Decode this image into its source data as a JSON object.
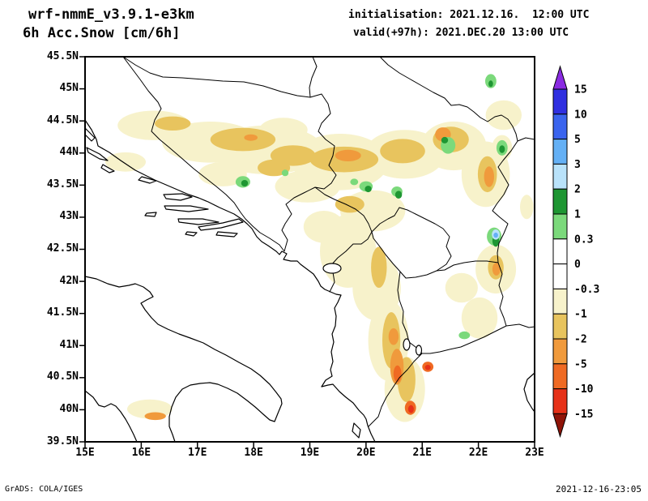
{
  "header": {
    "model_line": "wrf-nmmE_v3.9.1-e3km",
    "field_line": "6h Acc.Snow [cm/6h]",
    "init_line": "initialisation: 2021.12.16.  12:00 UTC",
    "valid_line": "valid(+97h): 2021.DEC.20 13:00 UTC"
  },
  "footer": {
    "grads_credit": "GrADS: COLA/IGES",
    "timestamp": "2021-12-16-23:05"
  },
  "chart_data": {
    "type": "heatmap",
    "title": "6h Acc.Snow [cm/6h]",
    "subtitle": "wrf-nmmE_v3.9.1-e3km",
    "grid": false,
    "legend_position": "right-colorbar",
    "x_axis": {
      "ticks_left_to_right": [
        "15E",
        "16E",
        "17E",
        "18E",
        "19E",
        "20E",
        "21E",
        "22E",
        "23E"
      ],
      "range_deg": [
        15,
        23
      ]
    },
    "y_axis": {
      "ticks_top_to_bottom": [
        "45.5N",
        "45N",
        "44.5N",
        "44N",
        "43.5N",
        "43N",
        "42.5N",
        "42N",
        "41.5N",
        "41N",
        "40.5N",
        "40N",
        "39.5N"
      ],
      "range_deg": [
        39.5,
        45.5
      ]
    },
    "colorbar": {
      "levels": [
        "15",
        "10",
        "5",
        "3",
        "2",
        "1",
        "0.3",
        "0",
        "-0.3",
        "-1",
        "-2",
        "-5",
        "-10",
        "-15"
      ],
      "over_color": "#8a2be2",
      "under_color": "#8f1408",
      "segment_colors": [
        "#2f2fe0",
        "#3a64ee",
        "#64b0f5",
        "#b9e2fa",
        "#1e9632",
        "#7bd97b",
        "#ffffff",
        "#ffffff",
        "#f7f2cb",
        "#e8c45e",
        "#f09a3c",
        "#ef6a23",
        "#e63118"
      ]
    },
    "snow_cells": [
      {
        "lon": 16.23,
        "lat": 44.43,
        "rx": 0.65,
        "ry": 0.23,
        "seg": 8
      },
      {
        "lon": 17.23,
        "lat": 44.17,
        "rx": 0.86,
        "ry": 0.32,
        "seg": 8
      },
      {
        "lon": 18.24,
        "lat": 44.05,
        "rx": 1.0,
        "ry": 0.38,
        "seg": 8
      },
      {
        "lon": 19.54,
        "lat": 43.86,
        "rx": 0.86,
        "ry": 0.44,
        "seg": 8
      },
      {
        "lon": 20.69,
        "lat": 43.98,
        "rx": 0.72,
        "ry": 0.38,
        "seg": 8
      },
      {
        "lon": 21.56,
        "lat": 44.11,
        "rx": 0.58,
        "ry": 0.38,
        "seg": 8
      },
      {
        "lon": 22.13,
        "lat": 43.67,
        "rx": 0.43,
        "ry": 0.51,
        "seg": 8
      },
      {
        "lon": 20.12,
        "lat": 43.1,
        "rx": 0.58,
        "ry": 0.32,
        "seg": 8
      },
      {
        "lon": 19.68,
        "lat": 42.47,
        "rx": 0.5,
        "ry": 0.57,
        "seg": 8
      },
      {
        "lon": 20.19,
        "lat": 41.9,
        "rx": 0.43,
        "ry": 0.51,
        "seg": 8
      },
      {
        "lon": 20.4,
        "lat": 41.08,
        "rx": 0.36,
        "ry": 0.63,
        "seg": 8
      },
      {
        "lon": 20.69,
        "lat": 40.32,
        "rx": 0.36,
        "ry": 0.51,
        "seg": 8
      },
      {
        "lon": 22.31,
        "lat": 42.19,
        "rx": 0.36,
        "ry": 0.38,
        "seg": 8
      },
      {
        "lon": 22.02,
        "lat": 41.43,
        "rx": 0.32,
        "ry": 0.32,
        "seg": 8
      },
      {
        "lon": 16.15,
        "lat": 40.01,
        "rx": 0.4,
        "ry": 0.15,
        "seg": 8
      },
      {
        "lon": 22.45,
        "lat": 44.59,
        "rx": 0.32,
        "ry": 0.23,
        "seg": 8
      },
      {
        "lon": 15.72,
        "lat": 43.86,
        "rx": 0.36,
        "ry": 0.15,
        "seg": 8
      },
      {
        "lon": 18.96,
        "lat": 43.48,
        "rx": 0.58,
        "ry": 0.25,
        "seg": 8
      },
      {
        "lon": 18.53,
        "lat": 44.36,
        "rx": 0.43,
        "ry": 0.19,
        "seg": 8
      },
      {
        "lon": 17.45,
        "lat": 43.67,
        "rx": 0.43,
        "ry": 0.19,
        "seg": 8
      },
      {
        "lon": 19.25,
        "lat": 42.85,
        "rx": 0.36,
        "ry": 0.25,
        "seg": 8
      },
      {
        "lon": 21.7,
        "lat": 41.9,
        "rx": 0.29,
        "ry": 0.23,
        "seg": 8
      },
      {
        "lon": 22.86,
        "lat": 43.16,
        "rx": 0.12,
        "ry": 0.19,
        "seg": 8
      },
      {
        "lon": 22.42,
        "lat": 44.08,
        "rx": 0.18,
        "ry": 0.2,
        "seg": 8
      },
      {
        "lon": 16.56,
        "lat": 44.46,
        "rx": 0.32,
        "ry": 0.11,
        "seg": 9
      },
      {
        "lon": 17.81,
        "lat": 44.21,
        "rx": 0.58,
        "ry": 0.18,
        "seg": 9
      },
      {
        "lon": 18.7,
        "lat": 43.96,
        "rx": 0.4,
        "ry": 0.16,
        "seg": 9
      },
      {
        "lon": 19.61,
        "lat": 43.9,
        "rx": 0.61,
        "ry": 0.2,
        "seg": 9
      },
      {
        "lon": 20.65,
        "lat": 44.03,
        "rx": 0.4,
        "ry": 0.19,
        "seg": 9
      },
      {
        "lon": 21.51,
        "lat": 44.21,
        "rx": 0.32,
        "ry": 0.2,
        "seg": 9
      },
      {
        "lon": 22.16,
        "lat": 43.67,
        "rx": 0.17,
        "ry": 0.28,
        "seg": 9
      },
      {
        "lon": 20.23,
        "lat": 42.22,
        "rx": 0.14,
        "ry": 0.32,
        "seg": 9
      },
      {
        "lon": 20.45,
        "lat": 41.08,
        "rx": 0.16,
        "ry": 0.44,
        "seg": 9
      },
      {
        "lon": 20.72,
        "lat": 40.47,
        "rx": 0.16,
        "ry": 0.35,
        "seg": 9
      },
      {
        "lon": 22.31,
        "lat": 42.22,
        "rx": 0.14,
        "ry": 0.19,
        "seg": 9
      },
      {
        "lon": 19.71,
        "lat": 43.2,
        "rx": 0.26,
        "ry": 0.13,
        "seg": 9
      },
      {
        "lon": 18.36,
        "lat": 43.77,
        "rx": 0.29,
        "ry": 0.13,
        "seg": 9
      },
      {
        "lon": 19.68,
        "lat": 43.96,
        "rx": 0.23,
        "ry": 0.09,
        "seg": 10
      },
      {
        "lon": 21.37,
        "lat": 44.29,
        "rx": 0.14,
        "ry": 0.11,
        "seg": 10
      },
      {
        "lon": 22.19,
        "lat": 43.63,
        "rx": 0.09,
        "ry": 0.16,
        "seg": 10
      },
      {
        "lon": 20.55,
        "lat": 40.67,
        "rx": 0.12,
        "ry": 0.28,
        "seg": 10
      },
      {
        "lon": 20.49,
        "lat": 41.14,
        "rx": 0.09,
        "ry": 0.13,
        "seg": 10
      },
      {
        "lon": 16.25,
        "lat": 39.9,
        "rx": 0.19,
        "ry": 0.06,
        "seg": 10
      },
      {
        "lon": 22.32,
        "lat": 42.19,
        "rx": 0.07,
        "ry": 0.1,
        "seg": 10
      },
      {
        "lon": 17.95,
        "lat": 44.24,
        "rx": 0.12,
        "ry": 0.05,
        "seg": 10
      },
      {
        "lon": 21.1,
        "lat": 40.67,
        "rx": 0.1,
        "ry": 0.08,
        "seg": 11
      },
      {
        "lon": 20.79,
        "lat": 40.03,
        "rx": 0.1,
        "ry": 0.11,
        "seg": 11
      },
      {
        "lon": 20.56,
        "lat": 40.56,
        "rx": 0.07,
        "ry": 0.13,
        "seg": 11
      },
      {
        "lon": 21.1,
        "lat": 40.66,
        "rx": 0.05,
        "ry": 0.04,
        "seg": 12
      },
      {
        "lon": 20.8,
        "lat": 40.01,
        "rx": 0.05,
        "ry": 0.06,
        "seg": 12
      },
      {
        "lon": 17.81,
        "lat": 43.55,
        "rx": 0.13,
        "ry": 0.09,
        "seg": 5
      },
      {
        "lon": 20.0,
        "lat": 43.48,
        "rx": 0.12,
        "ry": 0.08,
        "seg": 5
      },
      {
        "lon": 20.55,
        "lat": 43.4,
        "rx": 0.1,
        "ry": 0.08,
        "seg": 5
      },
      {
        "lon": 21.46,
        "lat": 44.12,
        "rx": 0.13,
        "ry": 0.13,
        "seg": 5
      },
      {
        "lon": 22.22,
        "lat": 45.12,
        "rx": 0.1,
        "ry": 0.11,
        "seg": 5
      },
      {
        "lon": 22.28,
        "lat": 42.7,
        "rx": 0.13,
        "ry": 0.14,
        "seg": 5
      },
      {
        "lon": 21.75,
        "lat": 41.16,
        "rx": 0.1,
        "ry": 0.06,
        "seg": 5
      },
      {
        "lon": 19.79,
        "lat": 43.55,
        "rx": 0.07,
        "ry": 0.05,
        "seg": 5
      },
      {
        "lon": 18.56,
        "lat": 43.69,
        "rx": 0.06,
        "ry": 0.05,
        "seg": 5
      },
      {
        "lon": 22.42,
        "lat": 44.08,
        "rx": 0.1,
        "ry": 0.12,
        "seg": 5
      },
      {
        "lon": 20.04,
        "lat": 43.44,
        "rx": 0.06,
        "ry": 0.05,
        "seg": 4
      },
      {
        "lon": 20.58,
        "lat": 43.35,
        "rx": 0.06,
        "ry": 0.06,
        "seg": 4
      },
      {
        "lon": 22.31,
        "lat": 42.63,
        "rx": 0.06,
        "ry": 0.09,
        "seg": 4
      },
      {
        "lon": 17.84,
        "lat": 43.53,
        "rx": 0.06,
        "ry": 0.05,
        "seg": 4
      },
      {
        "lon": 21.4,
        "lat": 44.2,
        "rx": 0.06,
        "ry": 0.05,
        "seg": 4
      },
      {
        "lon": 22.22,
        "lat": 45.08,
        "rx": 0.04,
        "ry": 0.05,
        "seg": 4
      },
      {
        "lon": 22.42,
        "lat": 44.06,
        "rx": 0.05,
        "ry": 0.06,
        "seg": 4
      },
      {
        "lon": 22.31,
        "lat": 42.73,
        "rx": 0.07,
        "ry": 0.08,
        "seg": 3
      },
      {
        "lon": 22.31,
        "lat": 42.72,
        "rx": 0.04,
        "ry": 0.04,
        "seg": 2
      }
    ]
  }
}
